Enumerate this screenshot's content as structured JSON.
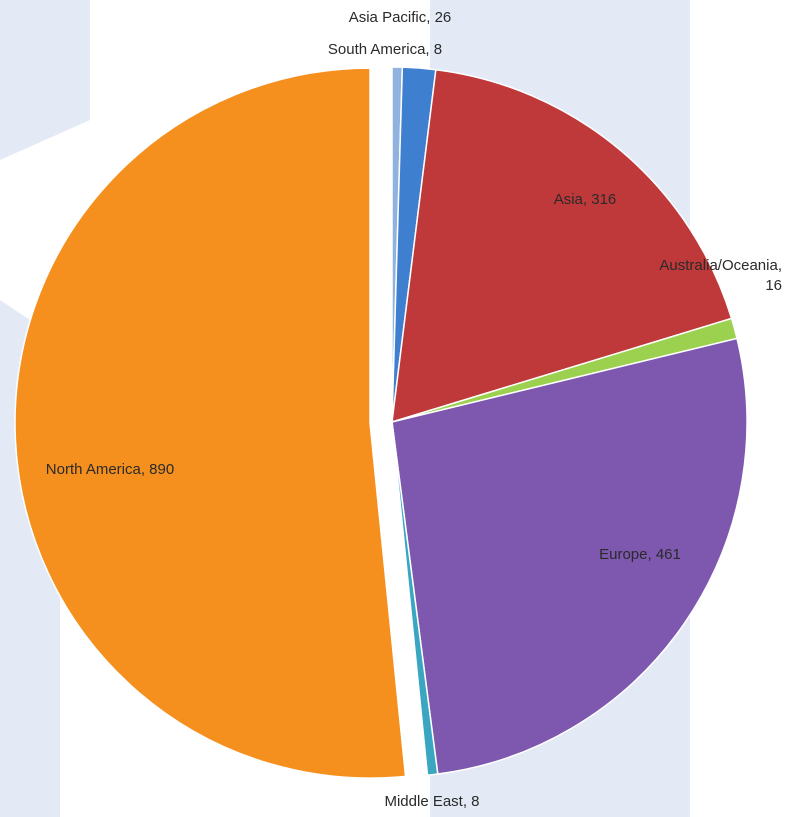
{
  "chart_data": {
    "type": "pie",
    "categories": [
      "South America",
      "Asia Pacific",
      "Asia",
      "Australia/Oceania",
      "Europe",
      "Middle East",
      "North America"
    ],
    "values": [
      8,
      26,
      316,
      16,
      461,
      8,
      890
    ],
    "value_labels": [
      "South America, 8",
      "Asia Pacific, 26",
      "Asia, 316",
      "Australia/Oceania, 16",
      "Europe, 461",
      "Middle East, 8",
      "North America, 890"
    ],
    "colors": [
      "#8fb3de",
      "#3f7fd0",
      "#c0393a",
      "#9bd14f",
      "#7d58ae",
      "#3aa6c2",
      "#f5901f"
    ]
  }
}
